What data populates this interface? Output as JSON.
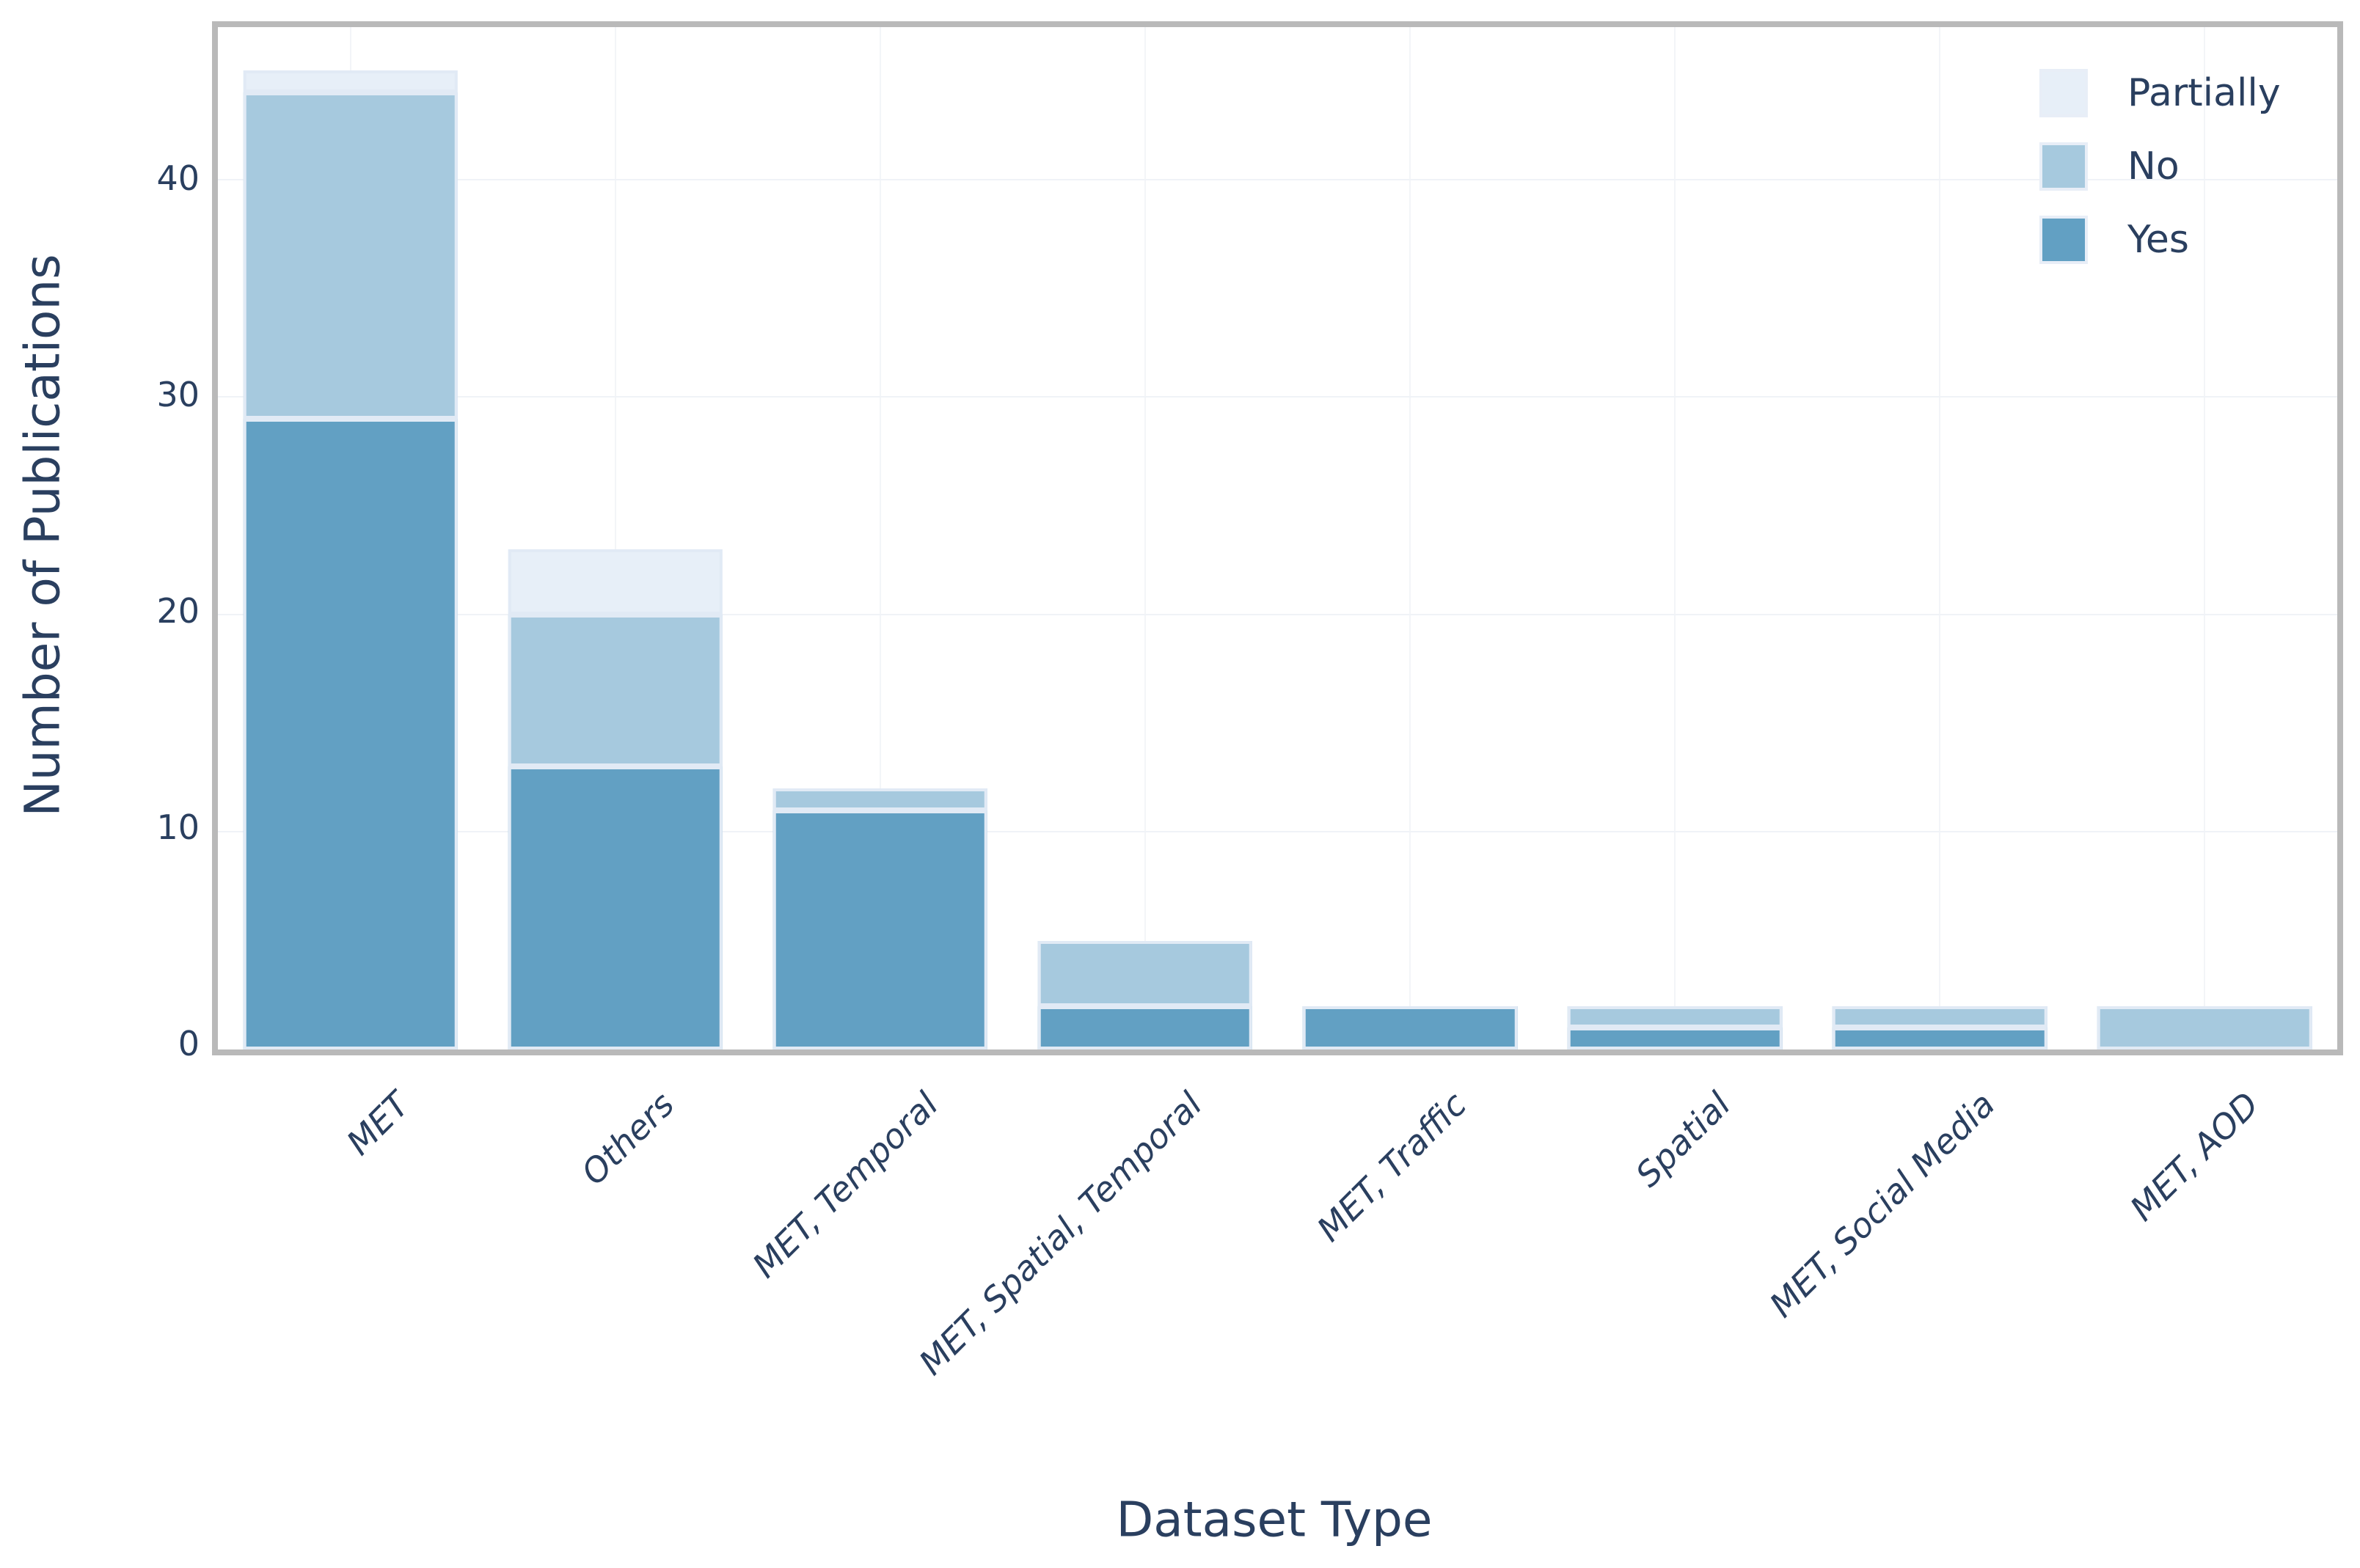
{
  "chart_data": {
    "type": "bar",
    "stacked": true,
    "title": "",
    "xlabel": "Dataset Type",
    "ylabel": "Number of Publications",
    "categories": [
      "MET",
      "Others",
      "MET, Temporal",
      "MET, Spatial, Temporal",
      "MET, Traffic",
      "Spatial",
      "MET, Social Media",
      "MET, AOD"
    ],
    "series": [
      {
        "name": "Yes",
        "color": "#62a0c3",
        "values": [
          29,
          13,
          11,
          2,
          2,
          1,
          1,
          0
        ]
      },
      {
        "name": "No",
        "color": "#a6c9de",
        "values": [
          15,
          7,
          1,
          3,
          0,
          1,
          1,
          2
        ]
      },
      {
        "name": "Partially",
        "color": "#e7eff8",
        "values": [
          1,
          3,
          0,
          0,
          0,
          0,
          0,
          0
        ]
      }
    ],
    "totals": [
      45,
      23,
      12,
      5,
      2,
      2,
      2,
      2
    ],
    "ylim": [
      0,
      47
    ],
    "yticks": [
      "0",
      "10",
      "20",
      "30",
      "40"
    ],
    "grid": true,
    "legend_position": "top-right"
  },
  "legend": {
    "items": [
      {
        "label": "Partially",
        "color": "#e7eff8"
      },
      {
        "label": "No",
        "color": "#a6c9de"
      },
      {
        "label": "Yes",
        "color": "#62a0c3"
      }
    ]
  },
  "colors": {
    "text": "#2a3f5f",
    "frame": "#b9b9b9",
    "gridline": "#f2f5f8",
    "segment_border": "#e1eaf5",
    "background": "#ffffff"
  }
}
